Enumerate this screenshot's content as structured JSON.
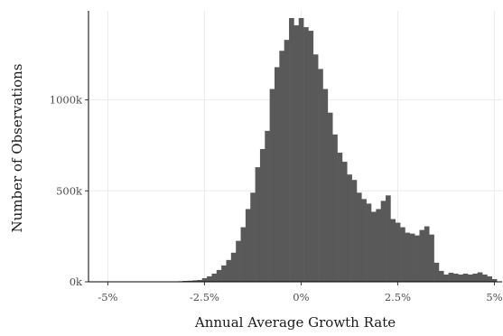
{
  "chart_data": {
    "type": "bar",
    "subtype": "histogram",
    "title": "",
    "xlabel": "Annual Average Growth Rate",
    "ylabel": "Number of Observations",
    "xlim": [
      -5.5,
      5.2
    ],
    "ylim": [
      0,
      1450000
    ],
    "grid": true,
    "bin_width": 0.125,
    "x_ticks": [
      {
        "value": -5,
        "label": "-5%"
      },
      {
        "value": -2.5,
        "label": "-2.5%"
      },
      {
        "value": 0,
        "label": "0%"
      },
      {
        "value": 2.5,
        "label": "2.5%"
      },
      {
        "value": 5,
        "label": "5%"
      }
    ],
    "y_ticks": [
      {
        "value": 0,
        "label": "0k"
      },
      {
        "value": 500000,
        "label": "500k"
      },
      {
        "value": 1000000,
        "label": "1000k"
      }
    ],
    "bins": [
      {
        "x": -5.0,
        "y": 500
      },
      {
        "x": -4.875,
        "y": 500
      },
      {
        "x": -4.75,
        "y": 500
      },
      {
        "x": -4.625,
        "y": 500
      },
      {
        "x": -4.5,
        "y": 500
      },
      {
        "x": -4.375,
        "y": 500
      },
      {
        "x": -4.25,
        "y": 500
      },
      {
        "x": -4.125,
        "y": 500
      },
      {
        "x": -4.0,
        "y": 500
      },
      {
        "x": -3.875,
        "y": 500
      },
      {
        "x": -3.75,
        "y": 500
      },
      {
        "x": -3.625,
        "y": 1000
      },
      {
        "x": -3.5,
        "y": 1000
      },
      {
        "x": -3.375,
        "y": 1000
      },
      {
        "x": -3.25,
        "y": 2000
      },
      {
        "x": -3.125,
        "y": 3000
      },
      {
        "x": -3.0,
        "y": 5000
      },
      {
        "x": -2.875,
        "y": 6000
      },
      {
        "x": -2.75,
        "y": 8000
      },
      {
        "x": -2.625,
        "y": 10000
      },
      {
        "x": -2.5,
        "y": 20000
      },
      {
        "x": -2.375,
        "y": 30000
      },
      {
        "x": -2.25,
        "y": 45000
      },
      {
        "x": -2.125,
        "y": 65000
      },
      {
        "x": -2.0,
        "y": 90000
      },
      {
        "x": -1.875,
        "y": 120000
      },
      {
        "x": -1.75,
        "y": 160000
      },
      {
        "x": -1.625,
        "y": 225000
      },
      {
        "x": -1.5,
        "y": 300000
      },
      {
        "x": -1.375,
        "y": 400000
      },
      {
        "x": -1.25,
        "y": 490000
      },
      {
        "x": -1.125,
        "y": 630000
      },
      {
        "x": -1.0,
        "y": 730000
      },
      {
        "x": -0.875,
        "y": 830000
      },
      {
        "x": -0.75,
        "y": 1060000
      },
      {
        "x": -0.625,
        "y": 1180000
      },
      {
        "x": -0.5,
        "y": 1270000
      },
      {
        "x": -0.375,
        "y": 1330000
      },
      {
        "x": -0.25,
        "y": 1450000
      },
      {
        "x": -0.125,
        "y": 1410000
      },
      {
        "x": 0.0,
        "y": 1450000
      },
      {
        "x": 0.125,
        "y": 1400000
      },
      {
        "x": 0.25,
        "y": 1380000
      },
      {
        "x": 0.375,
        "y": 1250000
      },
      {
        "x": 0.5,
        "y": 1170000
      },
      {
        "x": 0.625,
        "y": 1060000
      },
      {
        "x": 0.75,
        "y": 930000
      },
      {
        "x": 0.875,
        "y": 810000
      },
      {
        "x": 1.0,
        "y": 710000
      },
      {
        "x": 1.125,
        "y": 660000
      },
      {
        "x": 1.25,
        "y": 590000
      },
      {
        "x": 1.375,
        "y": 560000
      },
      {
        "x": 1.5,
        "y": 490000
      },
      {
        "x": 1.625,
        "y": 455000
      },
      {
        "x": 1.75,
        "y": 430000
      },
      {
        "x": 1.875,
        "y": 385000
      },
      {
        "x": 2.0,
        "y": 400000
      },
      {
        "x": 2.125,
        "y": 445000
      },
      {
        "x": 2.25,
        "y": 475000
      },
      {
        "x": 2.375,
        "y": 345000
      },
      {
        "x": 2.5,
        "y": 325000
      },
      {
        "x": 2.625,
        "y": 300000
      },
      {
        "x": 2.75,
        "y": 270000
      },
      {
        "x": 2.875,
        "y": 265000
      },
      {
        "x": 3.0,
        "y": 255000
      },
      {
        "x": 3.125,
        "y": 285000
      },
      {
        "x": 3.25,
        "y": 305000
      },
      {
        "x": 3.375,
        "y": 260000
      },
      {
        "x": 3.5,
        "y": 105000
      },
      {
        "x": 3.625,
        "y": 60000
      },
      {
        "x": 3.75,
        "y": 40000
      },
      {
        "x": 3.875,
        "y": 50000
      },
      {
        "x": 4.0,
        "y": 45000
      },
      {
        "x": 4.125,
        "y": 40000
      },
      {
        "x": 4.25,
        "y": 45000
      },
      {
        "x": 4.375,
        "y": 40000
      },
      {
        "x": 4.5,
        "y": 45000
      },
      {
        "x": 4.625,
        "y": 52000
      },
      {
        "x": 4.75,
        "y": 40000
      },
      {
        "x": 4.875,
        "y": 30000
      },
      {
        "x": 5.0,
        "y": 15000
      }
    ],
    "colors": {
      "bar": "#595959",
      "grid": "#ebebeb",
      "axis": "#000000"
    }
  }
}
